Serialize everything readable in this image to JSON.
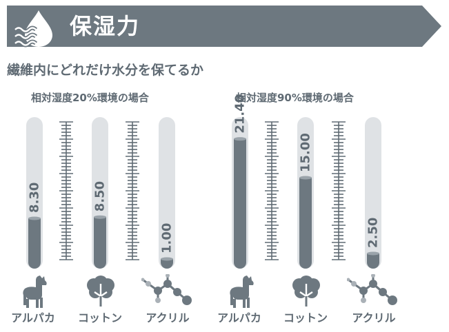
{
  "header": {
    "title": "保湿力",
    "icon": "water-drop-wave-icon",
    "banner_color": "#6d7880"
  },
  "subtitle": "繊維内にどれだけ水分を保てるか",
  "colors": {
    "fill": "#6d7880",
    "tube": "#dfe2e5",
    "text": "#5f6a73",
    "scale": "#5f6a73"
  },
  "chart_data": [
    {
      "type": "bar",
      "title": "相対湿度20%環境の場合",
      "categories": [
        "アルパカ",
        "コットン",
        "アクリル"
      ],
      "values": [
        8.3,
        8.5,
        1.0
      ],
      "value_labels": [
        "8.30",
        "8.50",
        "1.00"
      ],
      "icons": [
        "alpaca-icon",
        "cotton-plant-icon",
        "acrylic-molecule-icon"
      ],
      "ylim": [
        0,
        25
      ]
    },
    {
      "type": "bar",
      "title": "相対湿度90%環境の場合",
      "categories": [
        "アルパカ",
        "コットン",
        "アクリル"
      ],
      "values": [
        21.4,
        15.0,
        2.5
      ],
      "value_labels": [
        "21.40",
        "15.00",
        "2.50"
      ],
      "icons": [
        "alpaca-icon",
        "cotton-plant-icon",
        "acrylic-molecule-icon"
      ],
      "ylim": [
        0,
        25
      ]
    }
  ]
}
